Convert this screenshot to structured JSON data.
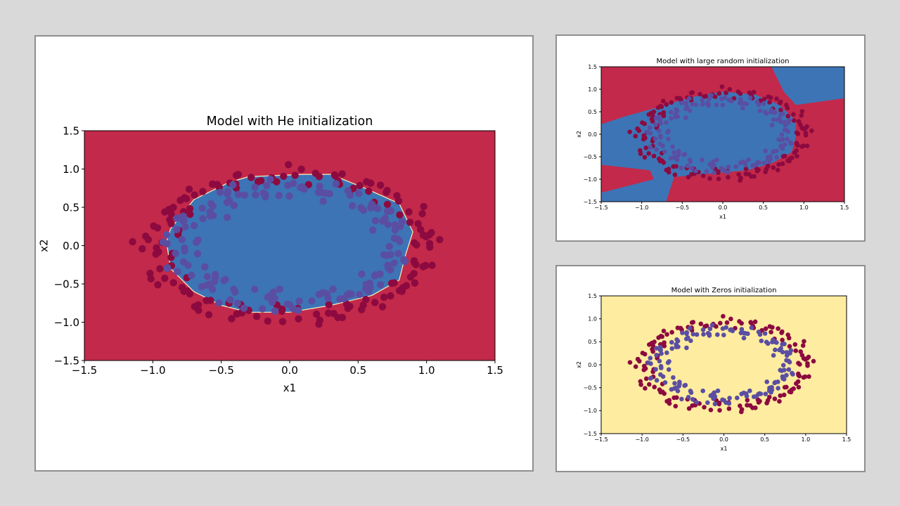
{
  "colors": {
    "background": "#d9d9d9",
    "panel": "#ffffff",
    "region_red": "#c3294a",
    "region_blue": "#3d74b6",
    "region_yellow": "#feeca0",
    "point_red": "#8c0a40",
    "point_blue": "#5a4ea2",
    "boundary": "#f5f1bd"
  },
  "chart_data": [
    {
      "id": "he",
      "type": "scatter",
      "title": "Model with He initialization",
      "xlabel": "x1",
      "ylabel": "x2",
      "xlim": [
        -1.5,
        1.5
      ],
      "ylim": [
        -1.5,
        1.5
      ],
      "xticks": [
        "−1.5",
        "−1.0",
        "−0.5",
        "0.0",
        "0.5",
        "1.0",
        "1.5"
      ],
      "yticks": [
        "1.5",
        "1.0",
        "0.5",
        "0.0",
        "−0.5",
        "−1.0",
        "−1.5"
      ],
      "background_class": "red",
      "decision_regions": [
        {
          "class": "blue",
          "polygon": [
            [
              -0.9,
              0.05
            ],
            [
              -0.87,
              0.22
            ],
            [
              -0.7,
              0.6
            ],
            [
              -0.45,
              0.82
            ],
            [
              -0.3,
              0.9
            ],
            [
              0.1,
              0.93
            ],
            [
              0.3,
              0.93
            ],
            [
              0.55,
              0.75
            ],
            [
              0.8,
              0.55
            ],
            [
              0.9,
              0.18
            ],
            [
              0.85,
              -0.1
            ],
            [
              0.8,
              -0.45
            ],
            [
              0.6,
              -0.65
            ],
            [
              0.3,
              -0.78
            ],
            [
              0.0,
              -0.87
            ],
            [
              -0.3,
              -0.87
            ],
            [
              -0.5,
              -0.78
            ],
            [
              -0.7,
              -0.6
            ],
            [
              -0.87,
              -0.3
            ]
          ]
        }
      ],
      "series": [
        {
          "class": "outer",
          "radius": 1.0,
          "count": 150
        },
        {
          "class": "inner",
          "radius": 0.78,
          "count": 150
        }
      ],
      "data_note_shape": "ellipse"
    },
    {
      "id": "large",
      "type": "scatter",
      "title": "Model with large random initialization",
      "xlabel": "x1",
      "ylabel": "x2",
      "xlim": [
        -1.5,
        1.5
      ],
      "ylim": [
        -1.5,
        1.5
      ],
      "xticks": [
        "−1.5",
        "−1.0",
        "−0.5",
        "0.0",
        "0.5",
        "1.0",
        "1.5"
      ],
      "yticks": [
        "1.5",
        "1.0",
        "0.5",
        "0.0",
        "−0.5",
        "−1.0",
        "−1.5"
      ],
      "background_class": "red",
      "decision_regions": [
        {
          "class": "blue",
          "polygon": [
            [
              -1.5,
              0.22
            ],
            [
              -1.2,
              0.4
            ],
            [
              -0.8,
              0.6
            ],
            [
              -0.4,
              0.82
            ],
            [
              0.0,
              0.95
            ],
            [
              0.4,
              0.88
            ],
            [
              0.7,
              0.65
            ],
            [
              0.9,
              0.3
            ],
            [
              0.9,
              -0.05
            ],
            [
              0.85,
              -0.4
            ],
            [
              0.6,
              -0.65
            ],
            [
              0.3,
              -0.8
            ],
            [
              -0.3,
              -0.9
            ],
            [
              -0.6,
              -0.95
            ],
            [
              -0.7,
              -1.5
            ],
            [
              -1.5,
              -1.5
            ],
            [
              -1.5,
              -1.3
            ],
            [
              -0.85,
              -1.0
            ],
            [
              -0.9,
              -0.8
            ],
            [
              -1.5,
              -0.68
            ]
          ]
        },
        {
          "class": "blue",
          "polygon": [
            [
              0.6,
              1.5
            ],
            [
              1.5,
              1.5
            ],
            [
              1.5,
              0.8
            ],
            [
              0.9,
              0.65
            ],
            [
              0.75,
              0.95
            ]
          ]
        }
      ],
      "series": [
        {
          "class": "outer",
          "radius": 1.0,
          "count": 150
        },
        {
          "class": "inner",
          "radius": 0.78,
          "count": 150
        }
      ]
    },
    {
      "id": "zeros",
      "type": "scatter",
      "title": "Model with Zeros initialization",
      "xlabel": "x1",
      "ylabel": "x2",
      "xlim": [
        -1.5,
        1.5
      ],
      "ylim": [
        -1.5,
        1.5
      ],
      "xticks": [
        "−1.5",
        "−1.0",
        "−0.5",
        "0.0",
        "0.5",
        "1.0",
        "1.5"
      ],
      "yticks": [
        "1.5",
        "1.0",
        "0.5",
        "0.0",
        "−0.5",
        "−1.0",
        "−1.5"
      ],
      "background_class": "yellow",
      "decision_regions": [],
      "series": [
        {
          "class": "outer",
          "radius": 1.0,
          "count": 150
        },
        {
          "class": "inner",
          "radius": 0.78,
          "count": 150
        }
      ]
    }
  ]
}
